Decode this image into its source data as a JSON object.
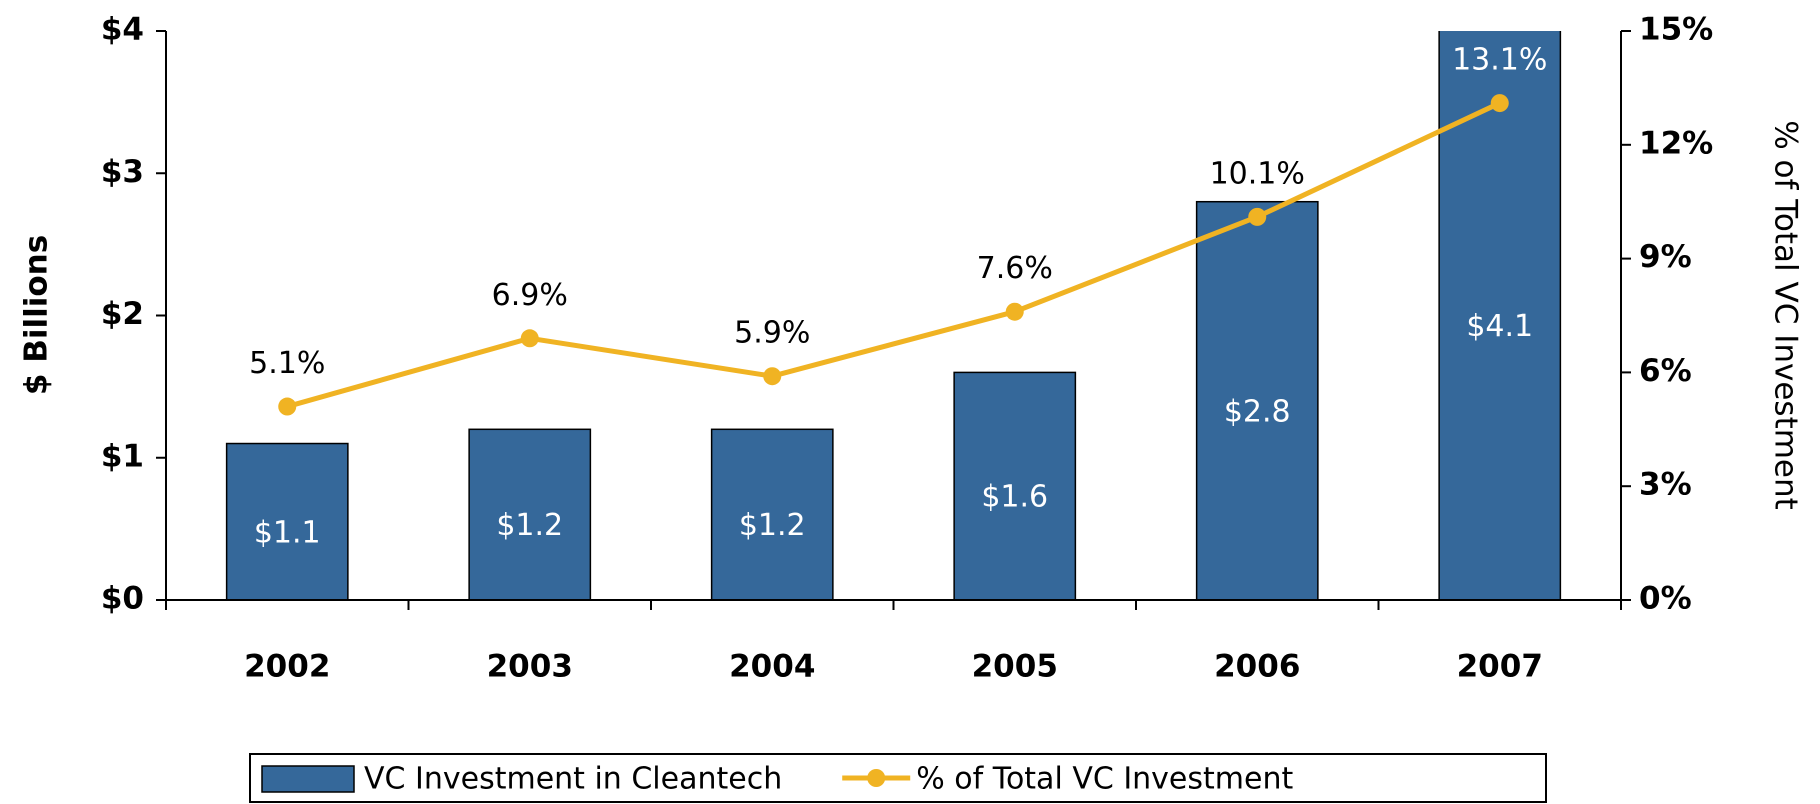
{
  "chart_data": {
    "type": "bar",
    "categories": [
      "2002",
      "2003",
      "2004",
      "2005",
      "2006",
      "2007"
    ],
    "ylabel": "$ Billions",
    "y2label": "% of Total VC Investment",
    "ylim": [
      0,
      4
    ],
    "yticks": [
      {
        "value": 0,
        "label": "$0"
      },
      {
        "value": 1,
        "label": "$1"
      },
      {
        "value": 2,
        "label": "$2"
      },
      {
        "value": 3,
        "label": "$3"
      },
      {
        "value": 4,
        "label": "$4"
      }
    ],
    "y2lim": [
      0,
      15
    ],
    "y2ticks": [
      {
        "value": 0,
        "label": "0%"
      },
      {
        "value": 3,
        "label": "3%"
      },
      {
        "value": 6,
        "label": "6%"
      },
      {
        "value": 9,
        "label": "9%"
      },
      {
        "value": 12,
        "label": "12%"
      },
      {
        "value": 15,
        "label": "15%"
      }
    ],
    "legend": "bottom",
    "series": [
      {
        "name": "VC Investment in Cleantech",
        "type": "bar",
        "color": "#35689a",
        "values": [
          1.1,
          1.2,
          1.2,
          1.6,
          2.8,
          4.1
        ],
        "value_labels": [
          "$1.1",
          "$1.2",
          "$1.2",
          "$1.6",
          "$2.8",
          "$4.1"
        ]
      },
      {
        "name": "% of Total VC Investment",
        "type": "line",
        "axis": "y2",
        "color": "#f0b323",
        "values": [
          5.1,
          6.9,
          5.9,
          7.6,
          10.1,
          13.1
        ],
        "value_labels": [
          "5.1%",
          "6.9%",
          "5.9%",
          "7.6%",
          "10.1%",
          "13.1%"
        ]
      }
    ]
  }
}
